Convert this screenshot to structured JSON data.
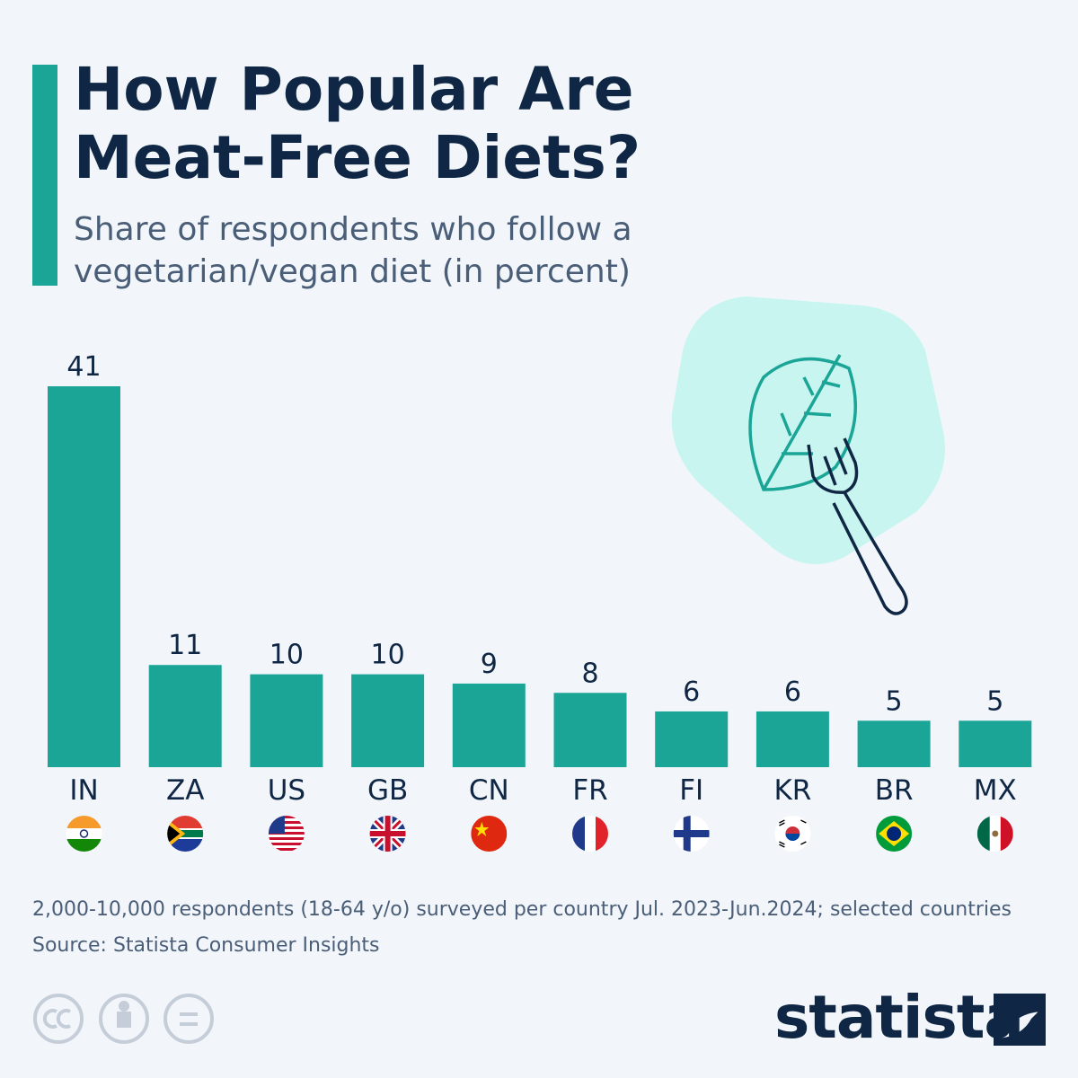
{
  "chart_data": {
    "type": "bar",
    "title": "How Popular Are Meat-Free Diets?",
    "subtitle": "Share of respondents who follow a vegetarian/vegan diet (in percent)",
    "categories": [
      "IN",
      "ZA",
      "US",
      "GB",
      "CN",
      "FR",
      "FI",
      "KR",
      "BR",
      "MX"
    ],
    "values": [
      41,
      11,
      10,
      10,
      9,
      8,
      6,
      6,
      5,
      5
    ],
    "color": "#1aa597",
    "ylim": [
      0,
      41
    ],
    "note": "2,000-10,000 respondents (18-64 y/o) surveyed per country Jul. 2023-Jun.2024; selected countries",
    "source": "Source: Statista Consumer Insights",
    "brand": "statista"
  }
}
